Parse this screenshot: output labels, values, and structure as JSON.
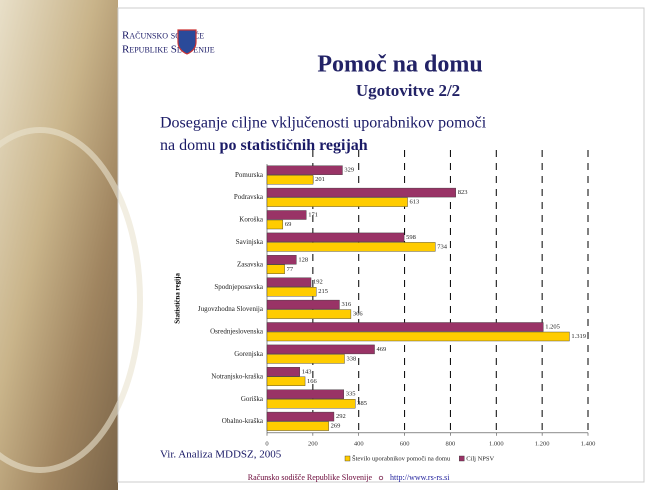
{
  "slide": {
    "logo_line1": "Računsko sodišče",
    "logo_line2": "Republike Slovenije",
    "title": "Pomoč na domu",
    "subtitle": "Ugotovitve 2/2",
    "heading_line1": "Doseganje ciljne vključenosti uporabnikov pomoči",
    "heading_line2": "na domu ",
    "heading_bold": "po statističnih regijah",
    "source": "Vir. Analiza MDDSZ, 2005",
    "footer_org": "Računsko sodišče Republike Slovenije",
    "footer_url": "http://www.rs-rs.si"
  },
  "chart_data": {
    "type": "bar",
    "orientation": "horizontal",
    "y_axis_label": "Statistična regija",
    "categories": [
      "Pomurska",
      "Podravska",
      "Koroška",
      "Savinjska",
      "Zasavska",
      "Spodnjeposavska",
      "Jugovzhodna Slovenija",
      "Osrednjeslovenska",
      "Gorenjska",
      "Notranjsko-kraška",
      "Goriška",
      "Obalno-kraška"
    ],
    "series": [
      {
        "name": "Število uporabnikov pomoči na domu",
        "color": "#ffcc00",
        "values": [
          201,
          613,
          69,
          734,
          77,
          215,
          366,
          1319,
          338,
          166,
          385,
          269
        ],
        "value_labels": [
          "201",
          "613",
          "69",
          "734",
          "77",
          "215",
          "366",
          "1.319",
          "338",
          "166",
          "385",
          "269"
        ]
      },
      {
        "name": "Cilj NPSV",
        "color": "#993366",
        "values": [
          329,
          823,
          171,
          598,
          128,
          192,
          316,
          1205,
          469,
          143,
          335,
          292
        ],
        "value_labels": [
          "329",
          "823",
          "171",
          "598",
          "128",
          "192",
          "316",
          "1.205",
          "469",
          "143",
          "335",
          "292"
        ]
      }
    ],
    "xlim": [
      0,
      1400
    ],
    "xticks": [
      0,
      200,
      400,
      600,
      800,
      {
        "value": 1000,
        "label": "1.000"
      },
      {
        "value": 1200,
        "label": "1.200"
      },
      {
        "value": 1400,
        "label": "1.400"
      }
    ],
    "grid": true,
    "legend": "bottom"
  }
}
